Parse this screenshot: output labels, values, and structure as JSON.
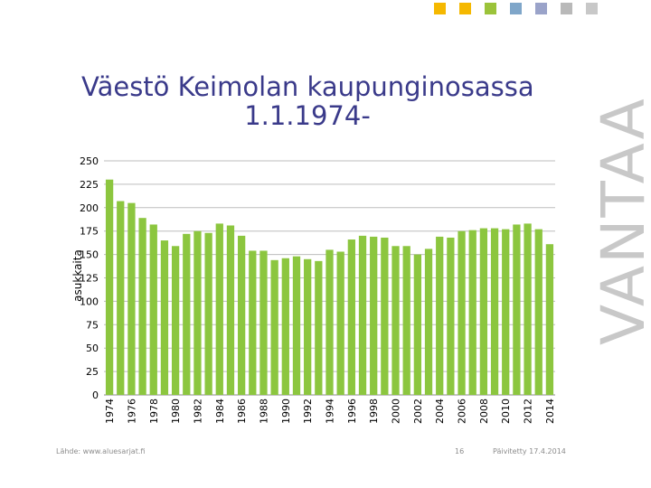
{
  "title_line1": "Väestö Keimolan kaupunginosassa",
  "title_line2": "1.1.1974-",
  "brand_text": "VANTAA",
  "footer": {
    "source": "Lähde: www.aluesarjat.fi",
    "page_number": "16",
    "updated": "Päivitetty 17.4.2014"
  },
  "corner_squares": [
    "#f5b800",
    "#f5b800",
    "#9bc33a",
    "#7fa6c9",
    "#9aa3c9",
    "#b9b9b9",
    "#c8c8c8"
  ],
  "chart_data": {
    "type": "bar",
    "ylabel": "asukkaita",
    "ylim": [
      0,
      250
    ],
    "yticks": [
      0,
      25,
      50,
      75,
      100,
      125,
      150,
      175,
      200,
      225,
      250
    ],
    "bar_color": "#8cc63f",
    "grid": true,
    "categories": [
      "1974",
      "1975",
      "1976",
      "1977",
      "1978",
      "1979",
      "1980",
      "1981",
      "1982",
      "1983",
      "1984",
      "1985",
      "1986",
      "1987",
      "1988",
      "1989",
      "1990",
      "1991",
      "1992",
      "1993",
      "1994",
      "1995",
      "1996",
      "1997",
      "1998",
      "1999",
      "2000",
      "2001",
      "2002",
      "2003",
      "2004",
      "2005",
      "2006",
      "2007",
      "2008",
      "2009",
      "2010",
      "2011",
      "2012",
      "2013",
      "2014"
    ],
    "category_labels": [
      "1974",
      "",
      "1976",
      "",
      "1978",
      "",
      "1980",
      "",
      "1982",
      "",
      "1984",
      "",
      "1986",
      "",
      "1988",
      "",
      "1990",
      "",
      "1992",
      "",
      "1994",
      "",
      "1996",
      "",
      "1998",
      "",
      "2000",
      "",
      "2002",
      "",
      "2004",
      "",
      "2006",
      "",
      "2008",
      "",
      "2010",
      "",
      "2012",
      "",
      "2014"
    ],
    "values": [
      230,
      207,
      205,
      189,
      182,
      165,
      159,
      172,
      175,
      173,
      183,
      181,
      170,
      154,
      154,
      144,
      146,
      148,
      145,
      143,
      155,
      153,
      166,
      170,
      169,
      168,
      159,
      159,
      150,
      156,
      169,
      168,
      175,
      176,
      178,
      178,
      177,
      182,
      183,
      177,
      161
    ]
  }
}
